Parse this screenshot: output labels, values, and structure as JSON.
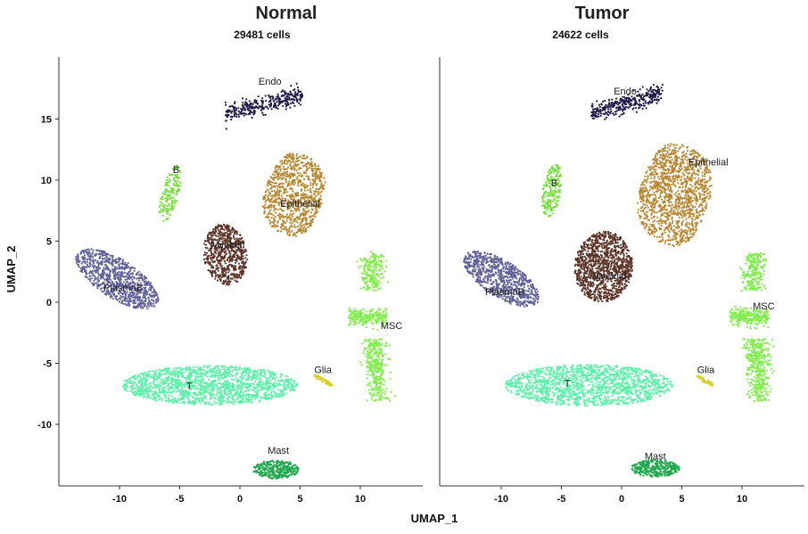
{
  "chart_data": {
    "type": "scatter",
    "xlabel": "UMAP_1",
    "ylabel": "UMAP_2",
    "xlim": [
      -14.5,
      15
    ],
    "ylim": [
      -15.5,
      20
    ],
    "x_ticks": [
      -10,
      -5,
      0,
      5,
      10
    ],
    "y_ticks": [
      15,
      10,
      5,
      0,
      -5,
      -10
    ],
    "x_tick_labels": [
      "-10",
      "-5",
      "0",
      "5",
      "10"
    ],
    "y_tick_labels": [
      "15",
      "10",
      "5",
      "0",
      "-5",
      "-10"
    ],
    "grid": false,
    "legend": "none",
    "cluster_colors": {
      "Endo": "#1f1a4a",
      "B": "#74e03a",
      "Epithelial": "#b8862e",
      "Myeloid": "#5c3428",
      "PlasmaB": "#62609a",
      "MSC": "#80ee4a",
      "Glia": "#d8cf1c",
      "T": "#5af2a8",
      "Mast": "#1da84a"
    },
    "panels": [
      {
        "title": "Normal",
        "subtitle": "29481 cells",
        "clusters": [
          {
            "name": "Endo",
            "label_x": 2.5,
            "label_y": 17.8,
            "shape": "endo",
            "cx": 2.0,
            "cy": 16.2,
            "rx": 3.2,
            "ry": 0.7,
            "n": 320
          },
          {
            "name": "B",
            "label_x": -5.3,
            "label_y": 10.6,
            "shape": "ellipse",
            "cx": -5.8,
            "cy": 8.9,
            "rx": 0.7,
            "ry": 2.4,
            "angle": -15,
            "n": 170
          },
          {
            "name": "Epithelial",
            "label_x": 5.0,
            "label_y": 7.8,
            "shape": "epithelial",
            "cx": 4.5,
            "cy": 8.8,
            "rx": 2.5,
            "ry": 3.4,
            "angle": 0,
            "n": 900
          },
          {
            "name": "Myeloid",
            "label_x": -1.0,
            "label_y": 4.4,
            "shape": "ellipse",
            "cx": -1.2,
            "cy": 3.9,
            "rx": 1.8,
            "ry": 2.5,
            "angle": 10,
            "n": 650
          },
          {
            "name": "PlasmaB",
            "label_x": -9.7,
            "label_y": 0.9,
            "shape": "ellipse",
            "cx": -10.2,
            "cy": 1.9,
            "rx": 3.9,
            "ry": 1.6,
            "angle": -32,
            "n": 900
          },
          {
            "name": "MSC",
            "label_x": 12.6,
            "label_y": -2.2,
            "shape": "msc",
            "cx": 11.0,
            "cy": -2.0,
            "rx": 1,
            "ry": 1,
            "n": 800
          },
          {
            "name": "Glia",
            "label_x": 6.9,
            "label_y": -5.8,
            "shape": "ellipse",
            "cx": 6.9,
            "cy": -6.4,
            "rx": 0.9,
            "ry": 0.18,
            "angle": -30,
            "n": 60
          },
          {
            "name": "T",
            "label_x": -4.2,
            "label_y": -7.1,
            "shape": "ellipse",
            "cx": -2.5,
            "cy": -6.8,
            "rx": 7.3,
            "ry": 1.6,
            "angle": 0,
            "n": 1600
          },
          {
            "name": "Mast",
            "label_x": 3.2,
            "label_y": -12.4,
            "shape": "ellipse",
            "cx": 3.0,
            "cy": -13.7,
            "rx": 1.9,
            "ry": 0.75,
            "angle": 0,
            "n": 320
          }
        ]
      },
      {
        "title": "Tumor",
        "subtitle": "24622 cells",
        "clusters": [
          {
            "name": "Endo",
            "label_x": 0.3,
            "label_y": 17.0,
            "shape": "endo",
            "cx": 0.4,
            "cy": 16.3,
            "rx": 3.0,
            "ry": 0.75,
            "n": 320
          },
          {
            "name": "B",
            "label_x": -5.6,
            "label_y": 9.5,
            "shape": "ellipse",
            "cx": -5.8,
            "cy": 9.1,
            "rx": 0.75,
            "ry": 2.2,
            "angle": -10,
            "n": 200
          },
          {
            "name": "Epithelial",
            "label_x": 7.2,
            "label_y": 11.2,
            "shape": "epithelial",
            "cx": 4.4,
            "cy": 8.8,
            "rx": 3.0,
            "ry": 4.2,
            "angle": 0,
            "n": 1300
          },
          {
            "name": "Myeloid",
            "label_x": -1.0,
            "label_y": 1.9,
            "shape": "ellipse",
            "cx": -1.5,
            "cy": 2.9,
            "rx": 2.4,
            "ry": 2.9,
            "angle": -8,
            "n": 1100
          },
          {
            "name": "PlasmaB",
            "label_x": -9.7,
            "label_y": 0.6,
            "shape": "ellipse",
            "cx": -10.0,
            "cy": 1.9,
            "rx": 3.6,
            "ry": 1.5,
            "angle": -32,
            "n": 800
          },
          {
            "name": "MSC",
            "label_x": 11.8,
            "label_y": -0.6,
            "shape": "msc",
            "cx": 11.0,
            "cy": -2.0,
            "rx": 1,
            "ry": 1,
            "n": 900
          },
          {
            "name": "Glia",
            "label_x": 7.0,
            "label_y": -5.8,
            "shape": "ellipse",
            "cx": 6.9,
            "cy": -6.4,
            "rx": 0.8,
            "ry": 0.18,
            "angle": -30,
            "n": 50
          },
          {
            "name": "T",
            "label_x": -4.5,
            "label_y": -6.9,
            "shape": "ellipse",
            "cx": -2.7,
            "cy": -6.8,
            "rx": 7.0,
            "ry": 1.7,
            "angle": 0,
            "n": 1500
          },
          {
            "name": "Mast",
            "label_x": 2.8,
            "label_y": -12.9,
            "shape": "ellipse",
            "cx": 2.8,
            "cy": -13.6,
            "rx": 2.0,
            "ry": 0.7,
            "angle": 0,
            "n": 330
          }
        ]
      }
    ]
  }
}
